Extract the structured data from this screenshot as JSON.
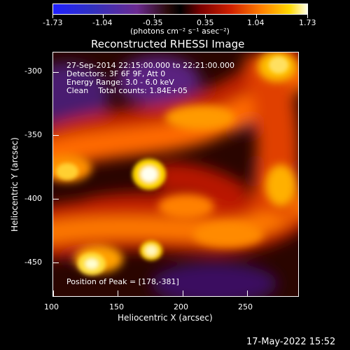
{
  "colorbar": {
    "ticks": [
      "-1.73",
      "-1.04",
      "-0.35",
      "0.35",
      "1.04",
      "1.73"
    ],
    "unit_label": "(photons cm⁻² s⁻¹ asec⁻²)"
  },
  "plot": {
    "title": "Reconstructed RHESSI Image",
    "info_lines": [
      "27-Sep-2014 22:15:00.000 to 22:21:00.000",
      "Detectors: 3F 6F 9F, Att 0",
      "Energy Range: 3.0 - 6.0 keV",
      "Clean    Total counts: 1.84E+05"
    ],
    "peak_text": "Position of Peak = [178,-381]",
    "xlabel": "Heliocentric X (arcsec)",
    "ylabel": "Heliocentric Y (arcsec)",
    "xticks": [
      "100",
      "150",
      "200",
      "250"
    ],
    "yticks": [
      "-300",
      "-350",
      "-400",
      "-450"
    ]
  },
  "timestamp": "17-May-2022 15:52"
}
